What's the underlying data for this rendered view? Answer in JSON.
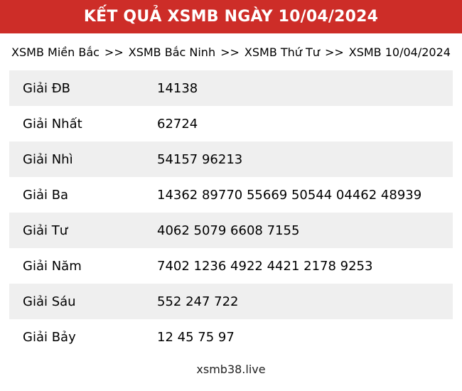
{
  "header": {
    "title": "KẾT QUẢ XSMB NGÀY 10/04/2024"
  },
  "breadcrumb": {
    "separator": ">>",
    "parts": [
      "XSMB Miền Bắc",
      "XSMB Bắc Ninh",
      "XSMB Thứ Tư",
      "XSMB 10/04/2024"
    ]
  },
  "table": {
    "rows": [
      {
        "label": "Giải ĐB",
        "value": "14138"
      },
      {
        "label": "Giải Nhất",
        "value": "62724"
      },
      {
        "label": "Giải Nhì",
        "value": "54157 96213"
      },
      {
        "label": "Giải Ba",
        "value": "14362 89770 55669 50544 04462 48939"
      },
      {
        "label": "Giải Tư",
        "value": "4062 5079 6608 7155"
      },
      {
        "label": "Giải Năm",
        "value": "7402 1236 4922 4421 2178 9253"
      },
      {
        "label": "Giải Sáu",
        "value": "552 247 722"
      },
      {
        "label": "Giải Bảy",
        "value": "12 45 75 97"
      }
    ]
  },
  "footer": {
    "site": "xsmb38.live"
  },
  "colors": {
    "header_bg": "#cd2d28",
    "header_text": "#ffffff",
    "row_alt": "#efefef",
    "text": "#000000",
    "footer_text": "#222222"
  }
}
